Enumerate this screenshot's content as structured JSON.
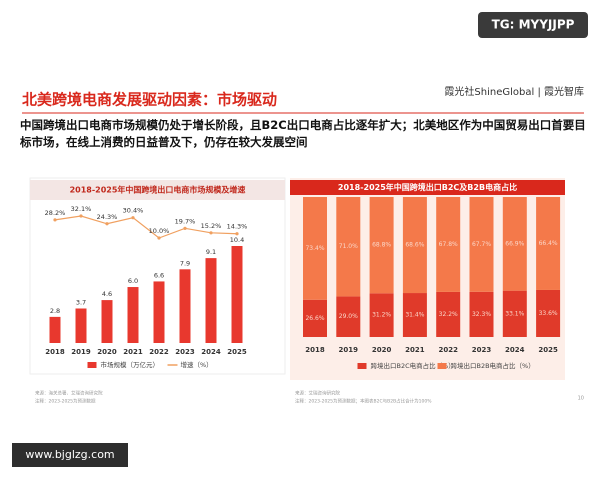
{
  "watermark_top": "TG: MYYJJPP",
  "header": {
    "title": "北美跨境电商发展驱动因素：市场驱动",
    "logo": "霞光社ShineGlobal | 霞光智库",
    "subtitle": "中国跨境出口电商市场规模仍处于增长阶段，且B2C出口电商占比逐年扩大；北美地区作为中国贸易出口首要目标市场，在线上消费的日益普及下，仍存在较大发展空间"
  },
  "chart_data": [
    {
      "type": "bar",
      "title": "2018-2025年中国跨境出口电商市场规模及增速",
      "categories": [
        "2018",
        "2019",
        "2020",
        "2021",
        "2022",
        "2023",
        "2024",
        "2025"
      ],
      "series": [
        {
          "name": "市场规模（万亿元）",
          "color": "#e8382e",
          "values": [
            2.8,
            3.7,
            4.6,
            6.0,
            6.6,
            7.9,
            9.1,
            10.4
          ],
          "value_labels": [
            "2.8",
            "3.7",
            "4.6",
            "6.0",
            "6.6",
            "7.9",
            "9.1",
            "10.4"
          ]
        },
        {
          "name": "增速（%）",
          "type": "line",
          "color": "#f0a060",
          "values": [
            28.2,
            32.1,
            24.3,
            30.4,
            10.0,
            19.7,
            15.2,
            14.3
          ],
          "value_labels": [
            "28.2%",
            "32.1%",
            "24.3%",
            "30.4%",
            "10.0%",
            "19.7%",
            "15.2%",
            "14.3%"
          ]
        }
      ],
      "legend": "bottom",
      "grid": false,
      "source": "来源：海关总署、艾瑞咨询研究院",
      "note": "注释：2023-2025为预测数据"
    },
    {
      "type": "stacked_bar",
      "title": "2018-2025年中国跨境出口B2C及B2B电商占比",
      "categories": [
        "2018",
        "2019",
        "2020",
        "2021",
        "2022",
        "2023",
        "2024",
        "2025"
      ],
      "series": [
        {
          "name": "跨境出口B2C电商占比（%）",
          "color": "#e03a2a",
          "values": [
            26.6,
            29.0,
            31.2,
            31.4,
            32.2,
            32.3,
            33.1,
            33.6
          ],
          "value_labels": [
            "26.6%",
            "29.0%",
            "31.2%",
            "31.4%",
            "32.2%",
            "32.3%",
            "33.1%",
            "33.6%"
          ]
        },
        {
          "name": "跨境出口B2B电商占比（%）",
          "color": "#f4794a",
          "values": [
            73.4,
            71.0,
            68.8,
            68.6,
            67.8,
            67.7,
            66.9,
            66.4
          ],
          "value_labels": [
            "73.4%",
            "71.0%",
            "68.8%",
            "68.6%",
            "67.8%",
            "67.7%",
            "66.9%",
            "66.4%"
          ]
        }
      ],
      "legend": "bottom",
      "grid": false,
      "source": "来源：艾瑞咨询研究院",
      "note": "注释：2023-2025为预测数据；本图表B2C与B2B占比合计为100%"
    }
  ],
  "page_number": "10",
  "watermark_bottom": "www.bjglzg.com"
}
